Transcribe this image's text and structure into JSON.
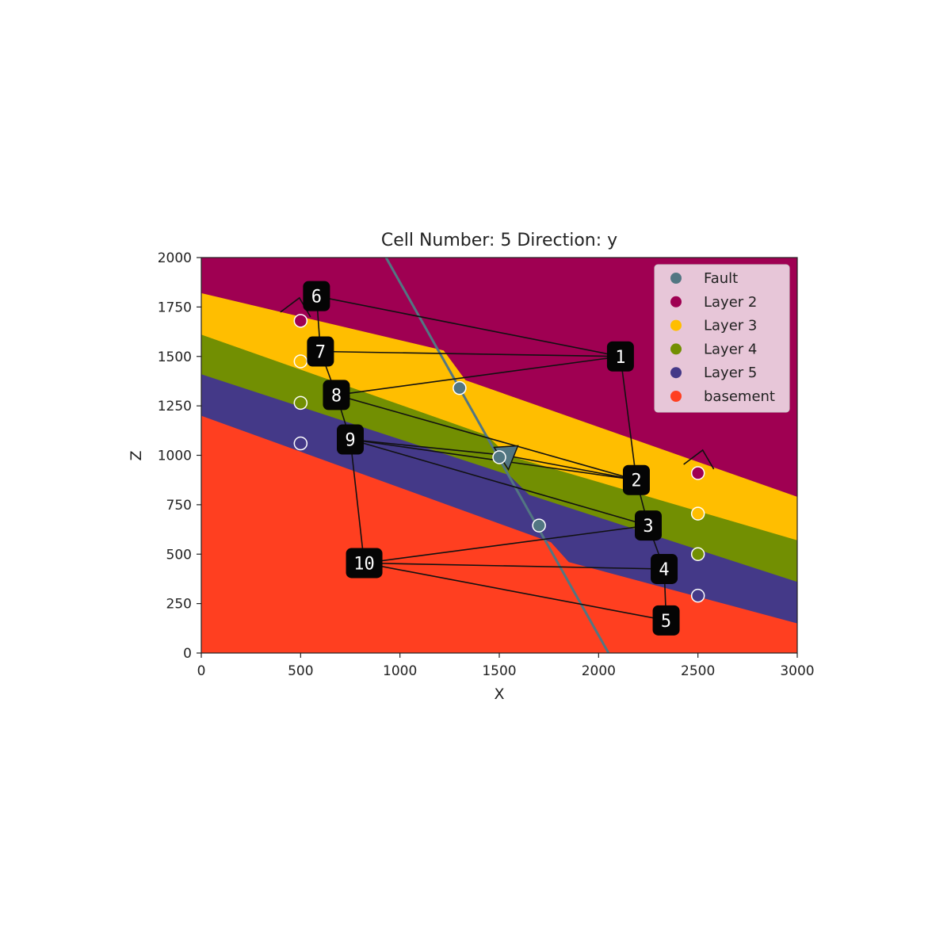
{
  "chart_data": {
    "type": "geological_section",
    "title": "Cell Number: 5 Direction: y",
    "xlabel": "X",
    "ylabel": "Z",
    "xlim": [
      0,
      3000
    ],
    "ylim": [
      0,
      2000
    ],
    "xticks": [
      "0",
      "500",
      "1000",
      "1500",
      "2000",
      "2500",
      "3000"
    ],
    "yticks": [
      "0",
      "250",
      "500",
      "750",
      "1000",
      "1250",
      "1500",
      "1750",
      "2000"
    ],
    "legend": {
      "placement": "upper right",
      "entries": [
        {
          "name": "Fault",
          "color": "#527682"
        },
        {
          "name": "Layer 2",
          "color": "#9f0052"
        },
        {
          "name": "Layer 3",
          "color": "#ffbe00"
        },
        {
          "name": "Layer 4",
          "color": "#728f02"
        },
        {
          "name": "Layer 5",
          "color": "#443988"
        },
        {
          "name": "basement",
          "color": "#ff3f20"
        }
      ]
    },
    "layers": [
      {
        "name": "Layer 2",
        "color": "#9f0052",
        "top": null
      },
      {
        "name": "Layer 3",
        "color": "#ffbe00",
        "top": {
          "left": [
            0,
            1820
          ],
          "at_fault_left": [
            1220,
            1530
          ],
          "at_fault_right": [
            1330,
            1380
          ],
          "right": [
            3000,
            790
          ]
        }
      },
      {
        "name": "Layer 4",
        "color": "#728f02",
        "top": {
          "left": [
            0,
            1610
          ],
          "at_fault_left": [
            1440,
            1100
          ],
          "at_fault_right": [
            1540,
            1000
          ],
          "right": [
            3000,
            570
          ]
        }
      },
      {
        "name": "Layer 5",
        "color": "#443988",
        "top": {
          "left": [
            0,
            1410
          ],
          "at_fault_left": [
            1550,
            900
          ],
          "at_fault_right": [
            1650,
            800
          ],
          "right": [
            3000,
            360
          ]
        }
      },
      {
        "name": "basement",
        "color": "#ff3f20",
        "top": {
          "left": [
            0,
            1200
          ],
          "at_fault_left": [
            1760,
            560
          ],
          "at_fault_right": [
            1850,
            460
          ],
          "right": [
            3000,
            150
          ]
        }
      }
    ],
    "fault_line": {
      "color": "#527682",
      "points": [
        [
          930,
          2000
        ],
        [
          2050,
          0
        ]
      ]
    },
    "fault_orientation": {
      "x": 1530,
      "y": 1000,
      "color": "#527682"
    },
    "surface_points": [
      {
        "series": "Fault",
        "x": 1300,
        "y": 1340
      },
      {
        "series": "Fault",
        "x": 1500,
        "y": 990
      },
      {
        "series": "Fault",
        "x": 1700,
        "y": 645
      },
      {
        "series": "Layer 2",
        "x": 500,
        "y": 1680
      },
      {
        "series": "Layer 2",
        "x": 2500,
        "y": 910
      },
      {
        "series": "Layer 3",
        "x": 500,
        "y": 1475
      },
      {
        "series": "Layer 3",
        "x": 2500,
        "y": 705
      },
      {
        "series": "Layer 4",
        "x": 500,
        "y": 1265
      },
      {
        "series": "Layer 4",
        "x": 2500,
        "y": 500
      },
      {
        "series": "Layer 5",
        "x": 500,
        "y": 1060
      },
      {
        "series": "Layer 5",
        "x": 2500,
        "y": 290
      }
    ],
    "layer_orientations": [
      {
        "x": 470,
        "y": 1700
      },
      {
        "x": 2500,
        "y": 930
      }
    ],
    "annotations": [
      {
        "label": "1",
        "x": 2110,
        "y": 1500
      },
      {
        "label": "2",
        "x": 2190,
        "y": 875
      },
      {
        "label": "3",
        "x": 2250,
        "y": 645
      },
      {
        "label": "4",
        "x": 2330,
        "y": 425
      },
      {
        "label": "5",
        "x": 2340,
        "y": 165
      },
      {
        "label": "6",
        "x": 580,
        "y": 1805
      },
      {
        "label": "7",
        "x": 600,
        "y": 1525
      },
      {
        "label": "8",
        "x": 680,
        "y": 1305
      },
      {
        "label": "9",
        "x": 750,
        "y": 1080
      },
      {
        "label": "10",
        "x": 820,
        "y": 455
      }
    ],
    "annotation_path": [
      [
        580,
        1805
      ],
      [
        2110,
        1500
      ],
      [
        600,
        1525
      ],
      [
        2110,
        1500
      ],
      [
        680,
        1305
      ],
      [
        2190,
        875
      ],
      [
        750,
        1080
      ],
      [
        2250,
        645
      ],
      [
        820,
        455
      ],
      [
        2330,
        425
      ],
      [
        820,
        455
      ],
      [
        2340,
        165
      ],
      [
        2330,
        425
      ],
      [
        2250,
        645
      ],
      [
        2190,
        875
      ],
      [
        2110,
        1500
      ]
    ],
    "annotation_extra_segments": [
      [
        [
          750,
          1080
        ],
        [
          820,
          455
        ]
      ],
      [
        [
          680,
          1305
        ],
        [
          750,
          1080
        ]
      ],
      [
        [
          600,
          1525
        ],
        [
          680,
          1305
        ]
      ],
      [
        [
          580,
          1805
        ],
        [
          600,
          1525
        ]
      ],
      [
        [
          750,
          1080
        ],
        [
          1530,
          1000
        ]
      ],
      [
        [
          1530,
          1000
        ],
        [
          2190,
          875
        ]
      ]
    ]
  }
}
